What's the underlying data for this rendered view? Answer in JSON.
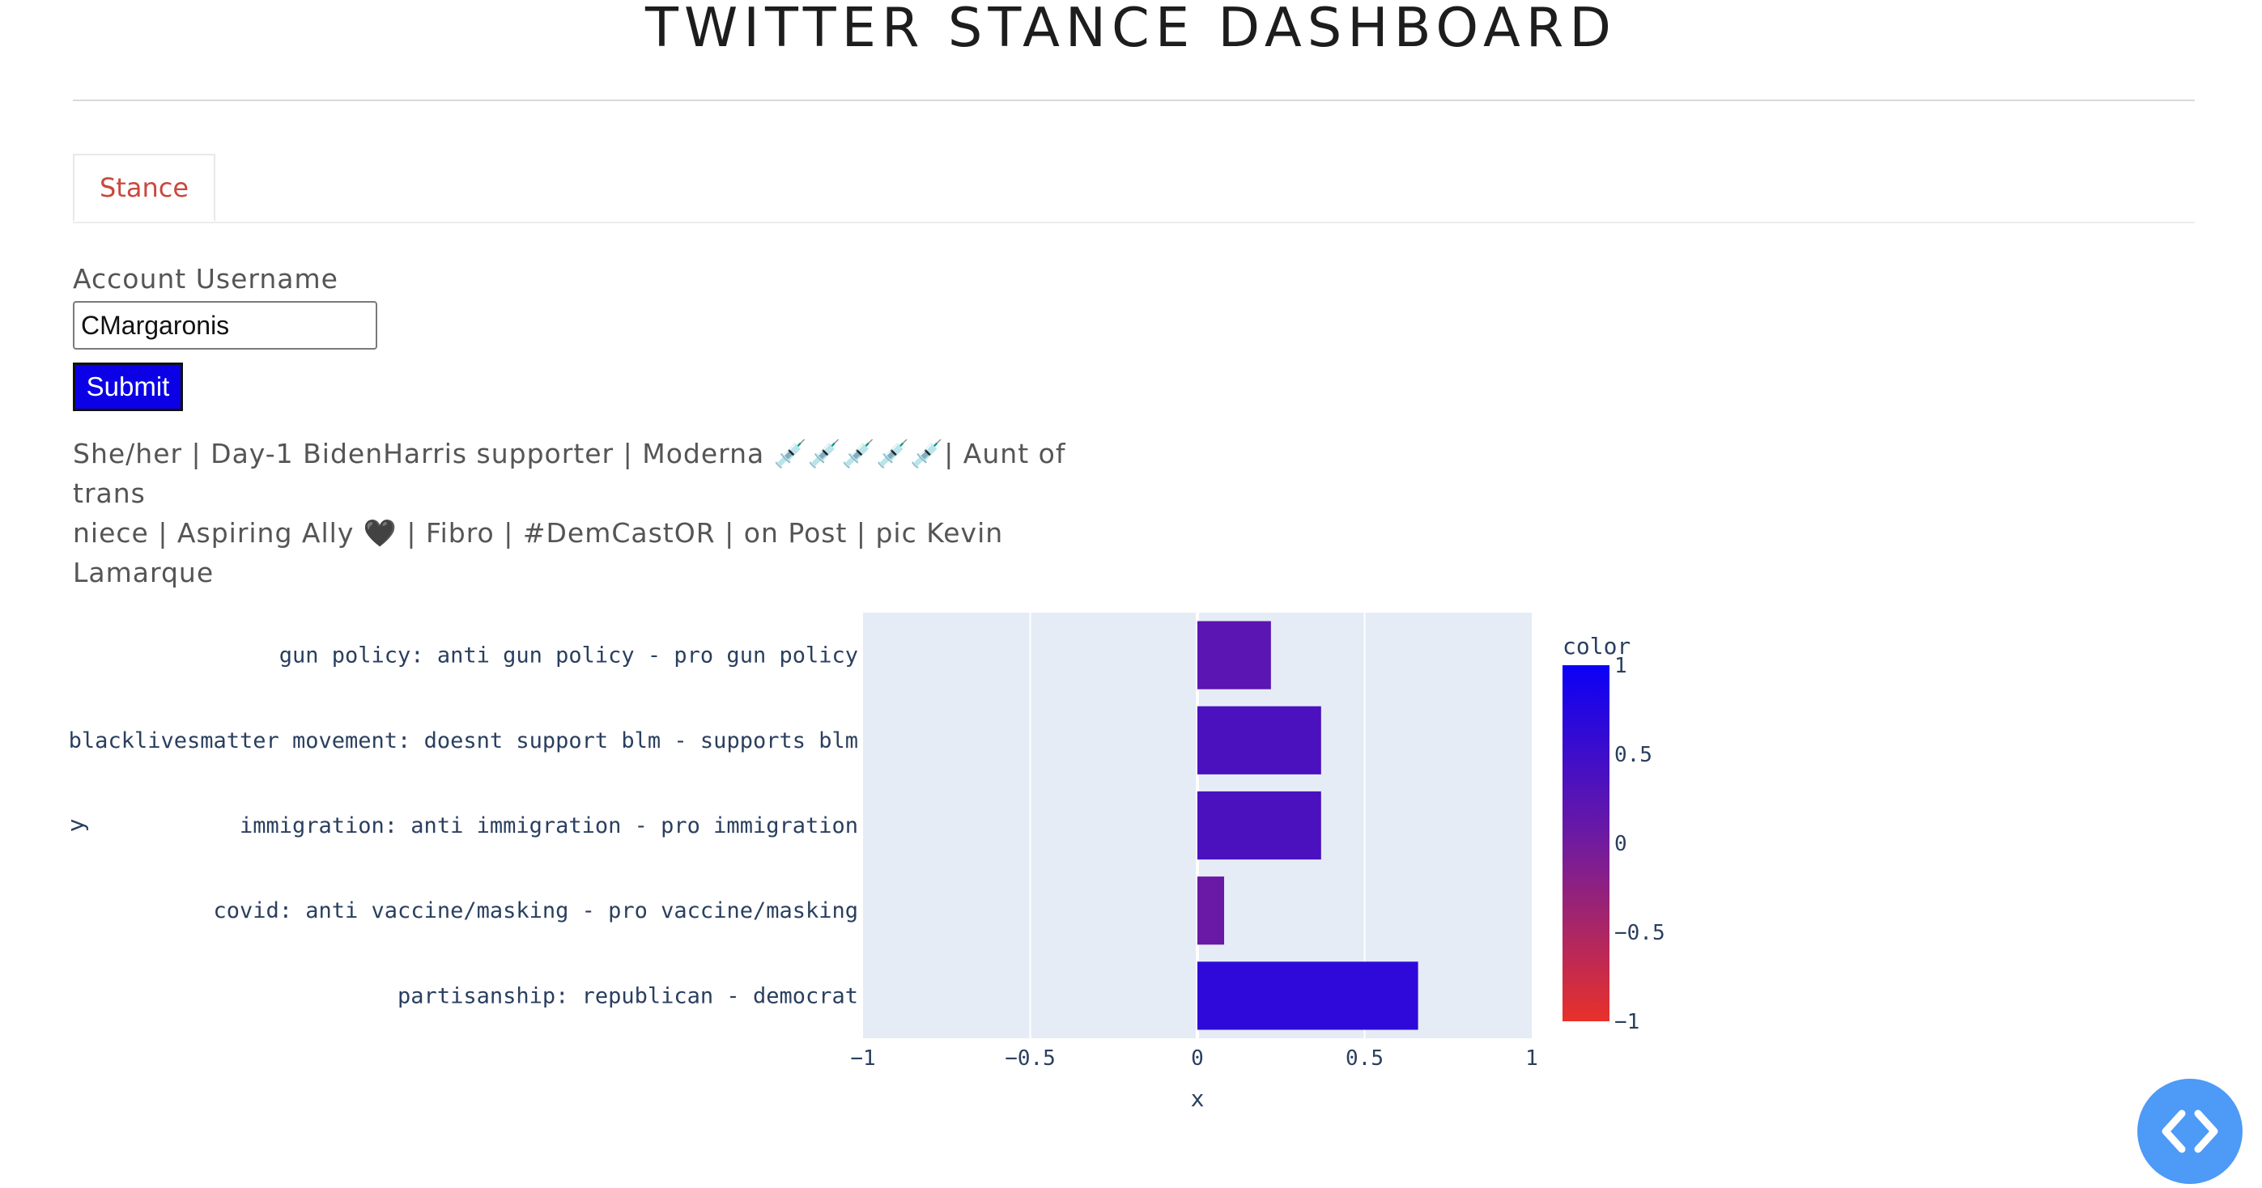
{
  "header": {
    "title": "TWITTER STANCE DASHBOARD"
  },
  "tabs": [
    {
      "label": "Stance",
      "active": true
    }
  ],
  "form": {
    "username_label": "Account Username",
    "username_value": "CMargaronis",
    "submit_label": "Submit"
  },
  "bio": {
    "line1": "She/her | Day-1 BidenHarris supporter | Moderna 💉💉💉💉💉| Aunt of trans",
    "line2": "niece | Aspiring Ally 🖤 | Fibro | #DemCastOR | on Post | pic Kevin Lamarque"
  },
  "chart_data": {
    "type": "bar",
    "orientation": "horizontal",
    "categories": [
      "gun policy: anti gun policy - pro gun policy",
      "blacklivesmatter movement: doesnt support blm - supports blm",
      "immigration: anti immigration - pro immigration",
      "covid: anti vaccine/masking - pro vaccine/masking",
      "partisanship: republican - democrat"
    ],
    "values": [
      0.22,
      0.37,
      0.37,
      0.08,
      0.66
    ],
    "xlabel": "x",
    "ylabel": "y",
    "xlim": [
      -1,
      1
    ],
    "xticks": [
      -1,
      -0.5,
      0,
      0.5,
      1
    ],
    "xtick_labels": [
      "−1",
      "−0.5",
      "0",
      "0.5",
      "1"
    ],
    "grid": true,
    "colorbar": {
      "title": "color",
      "range": [
        -1,
        1
      ],
      "ticks": [
        1,
        0.5,
        0,
        -0.5,
        -1
      ],
      "tick_labels": [
        "1",
        "0.5",
        "0",
        "−0.5",
        "−1"
      ],
      "low_color": "#e8312a",
      "mid_color": "#711b9e",
      "high_color": "#0b00f7"
    },
    "plot_bg": "#e5ecf6"
  },
  "fab": {
    "icon": "code-icon"
  }
}
